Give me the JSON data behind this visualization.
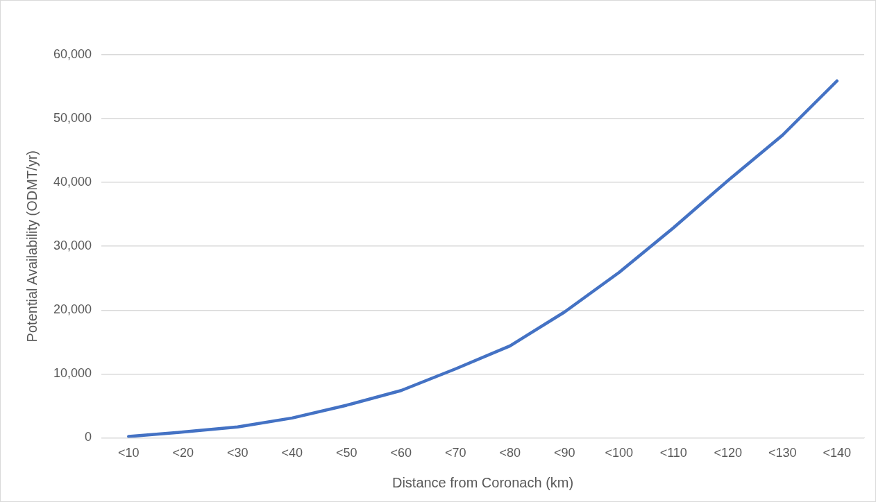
{
  "chart_data": {
    "type": "line",
    "xlabel": "Distance from Coronach (km)",
    "ylabel": "Potential Availability (ODMT/yr)",
    "categories": [
      "<10",
      "<20",
      "<30",
      "<40",
      "<50",
      "<60",
      "<70",
      "<80",
      "<90",
      "<100",
      "<110",
      "<120",
      "<130",
      "<140"
    ],
    "series": [
      {
        "color": "#4472c4",
        "values": [
          200,
          900,
          1700,
          3100,
          5100,
          7400,
          10800,
          14400,
          19700,
          25900,
          32900,
          40300,
          47400,
          55900
        ]
      }
    ],
    "ylim": [
      0,
      60000
    ],
    "yticks": [
      {
        "value": 0,
        "label": "0"
      },
      {
        "value": 10000,
        "label": "10,000"
      },
      {
        "value": 20000,
        "label": "20,000"
      },
      {
        "value": 30000,
        "label": "30,000"
      },
      {
        "value": 40000,
        "label": "40,000"
      },
      {
        "value": 50000,
        "label": "50,000"
      },
      {
        "value": 60000,
        "label": "60,000"
      }
    ],
    "grid": "y",
    "legend": false,
    "marker": "none",
    "line_style": "solid"
  }
}
